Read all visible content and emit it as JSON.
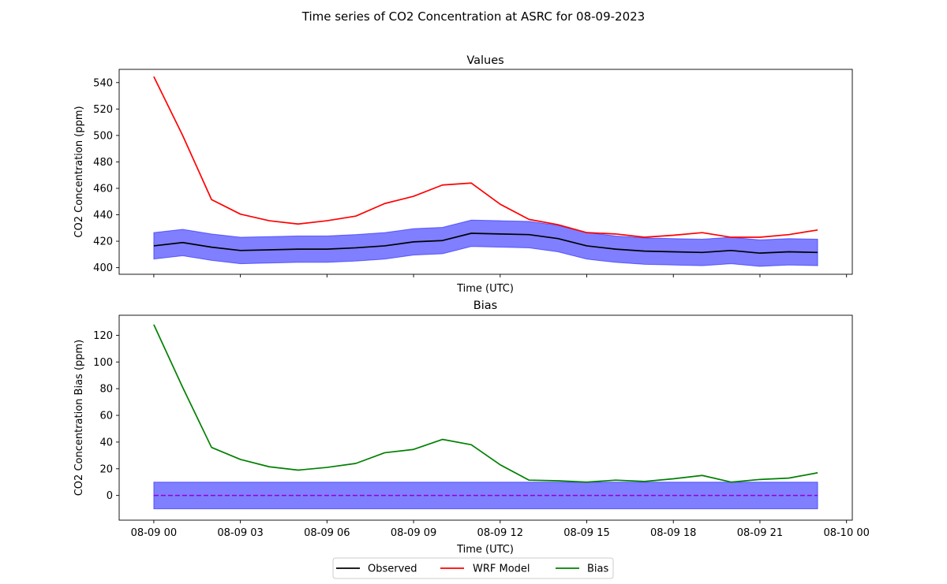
{
  "figure": {
    "suptitle": "Time series of CO2 Concentration at ASRC for 08-09-2023"
  },
  "legend": {
    "placement": "bottom-center",
    "items": [
      {
        "label": "Observed",
        "color": "#000000"
      },
      {
        "label": "WRF Model",
        "color": "#ff0000"
      },
      {
        "label": "Bias",
        "color": "#008000"
      }
    ]
  },
  "chart_data": [
    {
      "type": "line",
      "title": "Values",
      "xlabel": "Time (UTC)",
      "ylabel": "CO2 Concentration (ppm)",
      "ylim": [
        395,
        550
      ],
      "yticks": [
        400,
        420,
        440,
        460,
        480,
        500,
        520,
        540
      ],
      "x_hours": [
        0,
        1,
        2,
        3,
        4,
        5,
        6,
        7,
        8,
        9,
        10,
        11,
        12,
        13,
        14,
        15,
        16,
        17,
        18,
        19,
        20,
        21,
        22,
        23
      ],
      "xlim_hours": [
        -1.2,
        24.2
      ],
      "xticks_hours": [
        0,
        3,
        6,
        9,
        12,
        15,
        18,
        21,
        24
      ],
      "xtick_labels": [],
      "grid": false,
      "series": [
        {
          "name": "WRF Model",
          "color": "#ff0000",
          "values": [
            544.5,
            500,
            451.5,
            440.5,
            435.5,
            433,
            435.5,
            439,
            448.5,
            454,
            462.5,
            464,
            448,
            436.5,
            432.5,
            426.5,
            425.5,
            423,
            424.5,
            426.5,
            423,
            423,
            425,
            428.5
          ]
        },
        {
          "name": "Observed",
          "color": "#000000",
          "values": [
            416.5,
            419,
            415.5,
            413,
            413.5,
            414,
            414,
            415,
            416.5,
            419.5,
            420.5,
            426,
            425.5,
            425,
            422,
            416.5,
            414,
            412.5,
            412,
            411.5,
            413,
            411,
            412,
            411.5
          ]
        }
      ],
      "band": {
        "color": "#0000ff",
        "alpha": 0.5,
        "lower": [
          406.5,
          409,
          405.5,
          403,
          403.5,
          404,
          404,
          405,
          406.5,
          409.5,
          410.5,
          416,
          415.5,
          415,
          412,
          406.5,
          404,
          402.5,
          402,
          401.5,
          403,
          401,
          402,
          401.5
        ],
        "upper": [
          426.5,
          429,
          425.5,
          423,
          423.5,
          424,
          424,
          425,
          426.5,
          429.5,
          430.5,
          436,
          435.5,
          435,
          432,
          426.5,
          424,
          422.5,
          422,
          421.5,
          423,
          421,
          422,
          421.5
        ]
      }
    },
    {
      "type": "line",
      "title": "Bias",
      "xlabel": "Time (UTC)",
      "ylabel": "CO2 Concentration Bias (ppm)",
      "ylim": [
        -18.5,
        135
      ],
      "yticks": [
        0,
        20,
        40,
        60,
        80,
        100,
        120
      ],
      "x_hours": [
        0,
        1,
        2,
        3,
        4,
        5,
        6,
        7,
        8,
        9,
        10,
        11,
        12,
        13,
        14,
        15,
        16,
        17,
        18,
        19,
        20,
        21,
        22,
        23
      ],
      "xlim_hours": [
        -1.2,
        24.2
      ],
      "xticks_hours": [
        0,
        3,
        6,
        9,
        12,
        15,
        18,
        21,
        24
      ],
      "xtick_labels": [
        "08-09 00",
        "08-09 03",
        "08-09 06",
        "08-09 09",
        "08-09 12",
        "08-09 15",
        "08-09 18",
        "08-09 21",
        "08-10 00"
      ],
      "grid": false,
      "series": [
        {
          "name": "Bias",
          "color": "#008000",
          "values": [
            128,
            81,
            36,
            27,
            21.5,
            19,
            21,
            24,
            32,
            34.5,
            42,
            38,
            23,
            11.5,
            11,
            10,
            11.5,
            10.5,
            12.5,
            15,
            10,
            12,
            13,
            17
          ]
        }
      ],
      "band": {
        "color": "#0000ff",
        "alpha": 0.5,
        "lower_const": -10,
        "upper_const": 10
      },
      "zero_line": {
        "value": 0,
        "color": "#9400d3",
        "style": "dashed"
      }
    }
  ]
}
